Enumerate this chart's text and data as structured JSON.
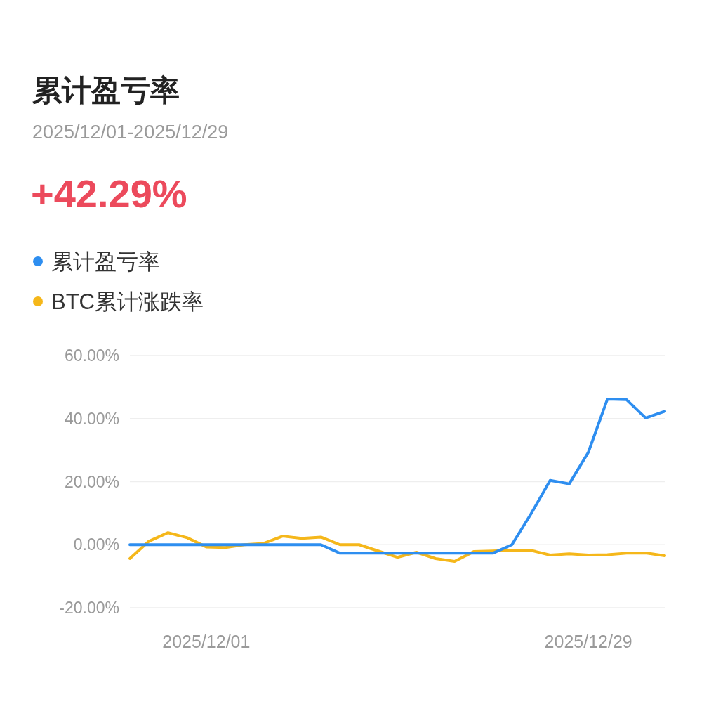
{
  "chart_data": {
    "type": "line",
    "title": "累计盈亏率",
    "subtitle": "2025/12/01-2025/12/29",
    "annotations": [
      "+42.29%"
    ],
    "categories": [
      null,
      null,
      null,
      null,
      "2025/12/01",
      null,
      null,
      null,
      null,
      null,
      null,
      null,
      null,
      null,
      null,
      null,
      null,
      null,
      null,
      null,
      null,
      null,
      null,
      null,
      "2025/12/29",
      null,
      null,
      null,
      null
    ],
    "series": [
      {
        "name": "累计盈亏率",
        "color": "#2e8ef0",
        "values": [
          0,
          0,
          0,
          0,
          0,
          0,
          0,
          0,
          0,
          0,
          0,
          -2.7,
          -2.7,
          -2.7,
          -2.7,
          -2.7,
          -2.7,
          -2.7,
          -2.7,
          -2.7,
          0,
          9.8,
          20.4,
          19.3,
          29.3,
          46.2,
          46,
          40.2,
          42.29
        ]
      },
      {
        "name": "BTC累计涨跌率",
        "color": "#f5b71a",
        "values": [
          -4.4,
          1.1,
          3.8,
          2.2,
          -0.7,
          -0.9,
          0,
          0.4,
          2.7,
          2.0,
          2.4,
          0,
          0,
          -2.0,
          -4.0,
          -2.4,
          -4.4,
          -5.3,
          -2.2,
          -2.0,
          -1.7,
          -1.8,
          -3.3,
          -2.9,
          -3.3,
          -3.2,
          -2.7,
          -2.6,
          -3.5
        ]
      }
    ],
    "ylim": [
      -20,
      60
    ],
    "yticks": [
      {
        "value": -20,
        "label": "-20.00%"
      },
      {
        "value": 0,
        "label": "0.00%"
      },
      {
        "value": 20,
        "label": "20.00%"
      },
      {
        "value": 40,
        "label": "40.00%"
      },
      {
        "value": 60,
        "label": "60.00%"
      }
    ],
    "grid": "y",
    "legend": "top left"
  }
}
